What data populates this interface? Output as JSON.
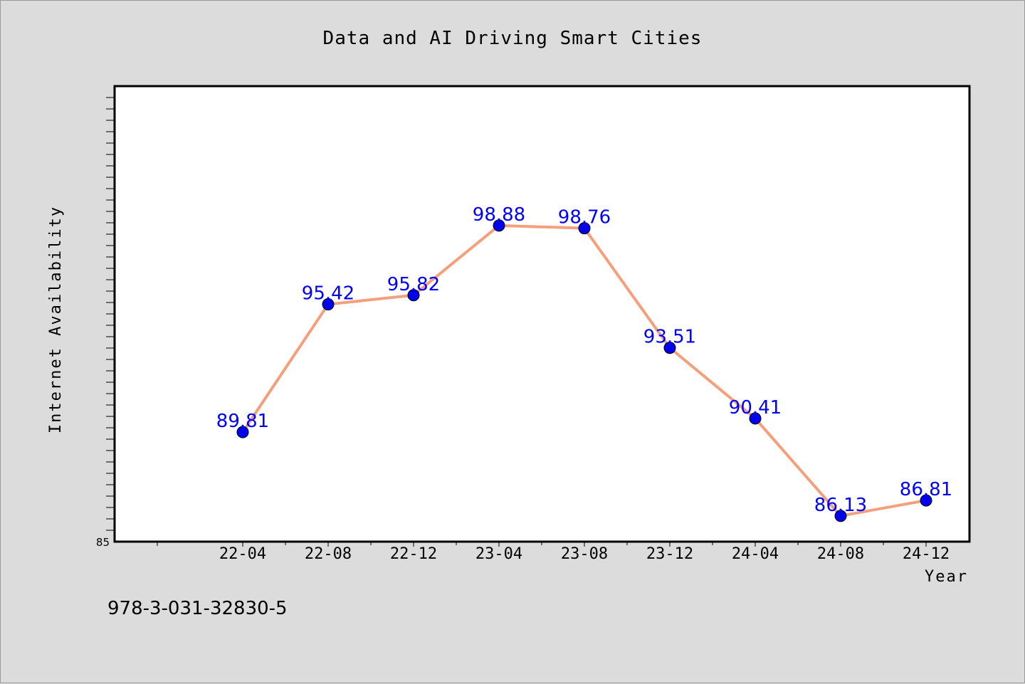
{
  "chart_data": {
    "type": "line",
    "title": "Data and AI Driving Smart Cities",
    "xlabel": "Year",
    "ylabel": "Internet Availability",
    "categories": [
      "22-04",
      "22-08",
      "22-12",
      "23-04",
      "23-08",
      "23-12",
      "24-04",
      "24-08",
      "24-12"
    ],
    "series": [
      {
        "values": [
          89.81,
          95.42,
          95.82,
          98.88,
          98.76,
          93.51,
          90.41,
          86.13,
          86.81
        ],
        "labels": [
          "89.81",
          "95.42",
          "95.82",
          "98.88",
          "98.76",
          "93.51",
          "90.41",
          "86.13",
          "86.81"
        ],
        "line_color": "#f4a07c",
        "marker_color": "#0000ee"
      }
    ],
    "y_tick_labels": [
      "85"
    ],
    "ylim": [
      85,
      105
    ],
    "grid": false,
    "legend": "none"
  },
  "footer": {
    "isbn": "978-3-031-32830-5"
  }
}
